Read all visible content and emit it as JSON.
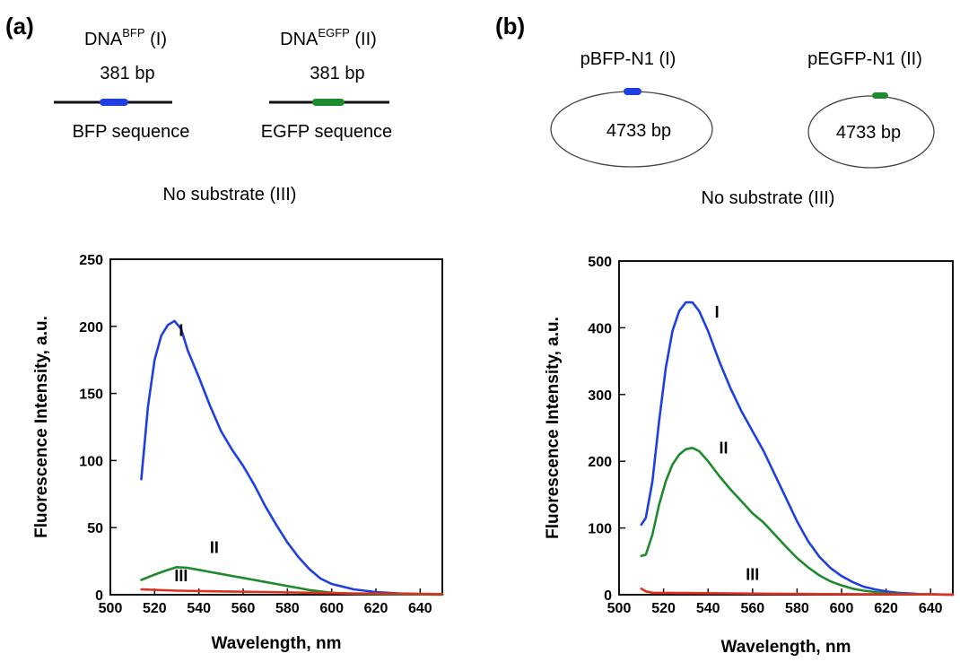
{
  "panel_a": {
    "letter": "(a)",
    "substrate1": {
      "prefix": "DNA",
      "sup": "BFP",
      "suffix": " (I)",
      "size": "381 bp",
      "seq": "BFP sequence",
      "color": "#1f3fe0"
    },
    "substrate2": {
      "prefix": "DNA",
      "sup": "EGFP",
      "suffix": " (II)",
      "size": "381 bp",
      "seq": "EGFP sequence",
      "color": "#1e8a2e"
    },
    "no_substrate": "No substrate (III)"
  },
  "panel_b": {
    "letter": "(b)",
    "plasmid1": {
      "name": "pBFP-N1 (I)",
      "size": "4733 bp",
      "color": "#1f3fe0"
    },
    "plasmid2": {
      "name": "pEGFP-N1 (II)",
      "size": "4733 bp",
      "color": "#1e8a2e"
    },
    "no_substrate": "No substrate (III)"
  },
  "chart_data": [
    {
      "type": "line",
      "panel": "(a)",
      "xlabel": "Wavelength, nm",
      "ylabel": "Fluorescence Intensity, a.u.",
      "xlim": [
        500,
        650
      ],
      "ylim": [
        0,
        250
      ],
      "xticks": [
        500,
        520,
        540,
        560,
        580,
        600,
        620,
        640
      ],
      "yticks": [
        0,
        50,
        100,
        150,
        200,
        250
      ],
      "grid": false,
      "series": [
        {
          "name": "I",
          "color": "#1f3fe0",
          "label_at": [
            532,
            193
          ],
          "x": [
            514,
            517,
            520,
            523,
            526,
            529,
            532,
            535,
            540,
            545,
            550,
            555,
            560,
            565,
            570,
            575,
            580,
            585,
            590,
            595,
            600,
            605,
            610,
            615,
            620,
            625,
            630,
            635,
            640,
            645,
            650
          ],
          "y": [
            86,
            140,
            175,
            193,
            201,
            204,
            198,
            182,
            162,
            141,
            122,
            108,
            96,
            82,
            66,
            52,
            39,
            28,
            19,
            12,
            8,
            6,
            4,
            3,
            2,
            1.5,
            1,
            0.8,
            0.5,
            0.3,
            0.2
          ]
        },
        {
          "name": "II",
          "color": "#1e8a2e",
          "label_at": [
            547,
            31
          ],
          "x": [
            514,
            520,
            525,
            530,
            535,
            540,
            545,
            550,
            555,
            560,
            565,
            570,
            575,
            580,
            585,
            590,
            595,
            600,
            605,
            610,
            620,
            630,
            640,
            650
          ],
          "y": [
            11,
            15,
            18,
            20.5,
            20,
            18.5,
            17,
            15.5,
            14,
            12.5,
            11,
            9.5,
            8,
            6.5,
            5,
            3.5,
            2.5,
            1.5,
            1,
            0.7,
            0.5,
            0.3,
            0.2,
            0.1
          ]
        },
        {
          "name": "III",
          "color": "#e03020",
          "label_at": [
            532,
            10
          ],
          "x": [
            514,
            530,
            550,
            570,
            590,
            610,
            630,
            650
          ],
          "y": [
            4,
            3,
            2.5,
            2,
            1.5,
            1,
            0.8,
            0.5
          ]
        }
      ]
    },
    {
      "type": "line",
      "panel": "(b)",
      "xlabel": "Wavelength, nm",
      "ylabel": "Fluorescence Intensity, a.u.",
      "xlim": [
        500,
        650
      ],
      "ylim": [
        0,
        500
      ],
      "xticks": [
        500,
        520,
        540,
        560,
        580,
        600,
        620,
        640
      ],
      "yticks": [
        0,
        100,
        200,
        300,
        400,
        500
      ],
      "grid": false,
      "series": [
        {
          "name": "I",
          "color": "#1f3fe0",
          "label_at": [
            544,
            415
          ],
          "x": [
            510,
            512,
            515,
            518,
            521,
            524,
            527,
            530,
            533,
            536,
            540,
            545,
            550,
            555,
            560,
            565,
            570,
            575,
            580,
            585,
            590,
            595,
            600,
            605,
            610,
            615,
            620,
            625,
            630,
            635,
            640,
            645,
            650
          ],
          "y": [
            105,
            115,
            170,
            260,
            340,
            395,
            425,
            438,
            438,
            425,
            395,
            350,
            310,
            275,
            245,
            215,
            180,
            145,
            110,
            80,
            57,
            40,
            28,
            19,
            12,
            8,
            5,
            3,
            2,
            1,
            0.5,
            0.3,
            0.2
          ]
        },
        {
          "name": "II",
          "color": "#1e8a2e",
          "label_at": [
            547,
            212
          ],
          "x": [
            510,
            512,
            515,
            518,
            521,
            524,
            527,
            530,
            533,
            536,
            540,
            545,
            550,
            555,
            560,
            565,
            570,
            575,
            580,
            585,
            590,
            595,
            600,
            605,
            610,
            615,
            620,
            630,
            640,
            650
          ],
          "y": [
            58,
            60,
            90,
            135,
            170,
            195,
            210,
            218,
            220,
            215,
            200,
            178,
            158,
            140,
            122,
            108,
            90,
            72,
            55,
            41,
            29,
            20,
            14,
            9,
            6,
            4,
            2,
            1,
            0.5,
            0.2
          ]
        },
        {
          "name": "III",
          "color": "#e03020",
          "label_at": [
            560,
            22
          ],
          "x": [
            510,
            512,
            515,
            530,
            550,
            570,
            590,
            610,
            630,
            650
          ],
          "y": [
            9,
            5,
            3,
            2.5,
            2,
            1.5,
            1,
            0.8,
            0.5,
            0.3
          ]
        }
      ]
    }
  ]
}
